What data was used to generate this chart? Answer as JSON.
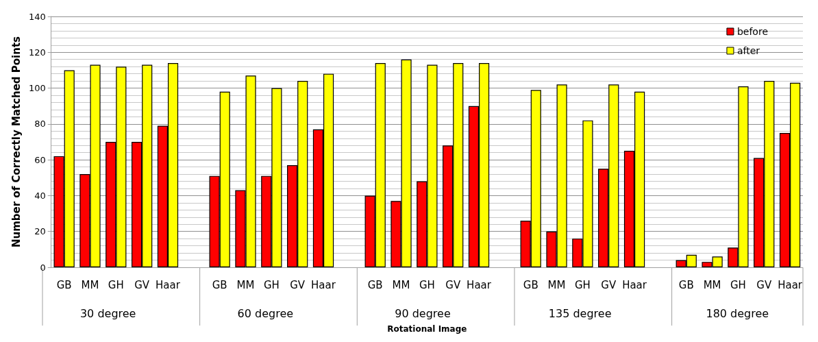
{
  "chart_data": {
    "type": "bar",
    "xlabel": "Rotational Image",
    "ylabel": "Number of Correctly Matched Points",
    "categories": [
      "GB",
      "MM",
      "GH",
      "GV",
      "Haar",
      null,
      "GB",
      "MM",
      "GH",
      "GV",
      "Haar",
      null,
      "GB",
      "MM",
      "GH",
      "GV",
      "Haar",
      null,
      "GB",
      "MM",
      "GH",
      "GV",
      "Haar",
      null,
      "GB",
      "MM",
      "GH",
      "GV",
      "Haar"
    ],
    "series": [
      {
        "name": "before",
        "color": "#ff0000",
        "values": [
          62,
          52,
          70,
          70,
          79,
          null,
          51,
          43,
          51,
          57,
          77,
          null,
          40,
          37,
          48,
          68,
          90,
          null,
          26,
          20,
          16,
          55,
          65,
          null,
          4,
          3,
          11,
          61,
          75
        ]
      },
      {
        "name": "after",
        "color": "#ffff00",
        "values": [
          110,
          113,
          112,
          113,
          114,
          null,
          98,
          107,
          100,
          104,
          108,
          null,
          114,
          116,
          113,
          114,
          114,
          null,
          99,
          102,
          82,
          102,
          98,
          null,
          7,
          6,
          101,
          104,
          103
        ]
      }
    ],
    "annotations": [
      "30 degree",
      "60 degree",
      "90 degree",
      "135 degree",
      "180 degree"
    ],
    "ylim": [
      0,
      140
    ],
    "yticks": [
      0,
      20,
      40,
      60,
      80,
      100,
      120,
      140
    ],
    "grid": "y",
    "legend": "top right"
  }
}
